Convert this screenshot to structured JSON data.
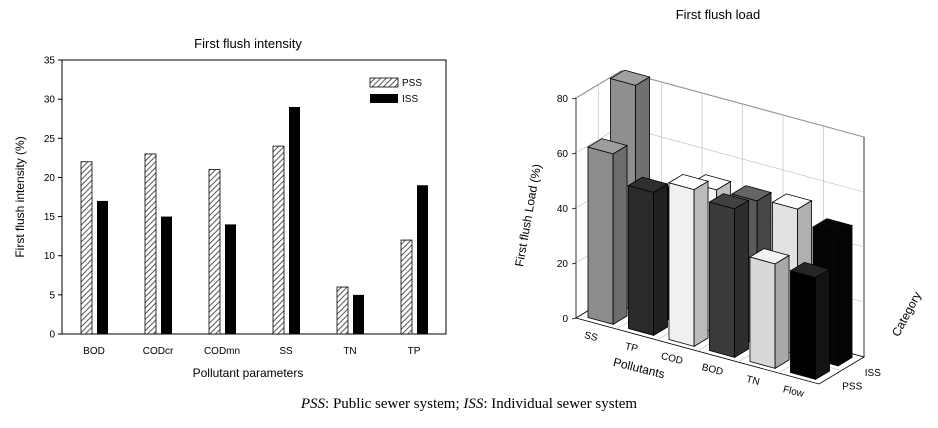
{
  "caption": {
    "pss_abbr": "PSS",
    "pss_text": ": Public sewer system; ",
    "iss_abbr": "ISS",
    "iss_text": ": Individual sewer system"
  },
  "colors": {
    "pss_hatch": "#555555",
    "iss_fill": "#000000",
    "pss_3d": "#a8a8a8",
    "iss_3d": "#333333"
  },
  "chart_data": [
    {
      "type": "bar",
      "title": "First flush intensity",
      "xlabel": "Pollutant parameters",
      "ylabel": "First flush intensity (%)",
      "ylim": [
        0,
        35
      ],
      "yticks": [
        "0",
        "5",
        "10",
        "15",
        "20",
        "25",
        "30",
        "35"
      ],
      "categories": [
        "BOD",
        "CODcr",
        "CODmn",
        "SS",
        "TN",
        "TP"
      ],
      "series": [
        {
          "name": "PSS",
          "style": "hatched",
          "values": [
            22,
            23,
            21,
            24,
            6,
            12
          ]
        },
        {
          "name": "ISS",
          "style": "solid-black",
          "values": [
            17,
            15,
            14,
            29,
            5,
            19
          ]
        }
      ],
      "legend": "top-right",
      "grid": false
    },
    {
      "type": "bar3d",
      "title": "First flush load",
      "xlabel": "Pollutants",
      "ylabel": "Category",
      "zlabel": "First flush Load (%)",
      "zlim": [
        0,
        80
      ],
      "zticks": [
        "0",
        "20",
        "40",
        "60",
        "80"
      ],
      "categories": [
        "SS",
        "TP",
        "COD",
        "BOD",
        "TN",
        "Flow"
      ],
      "category_labels": [
        "PSS",
        "ISS"
      ],
      "series": [
        {
          "name": "PSS",
          "values": [
            62,
            52,
            57,
            54,
            38,
            37
          ]
        },
        {
          "name": "ISS",
          "values": [
            82,
            44,
            52,
            52,
            53,
            48
          ]
        }
      ],
      "grid": true
    }
  ]
}
